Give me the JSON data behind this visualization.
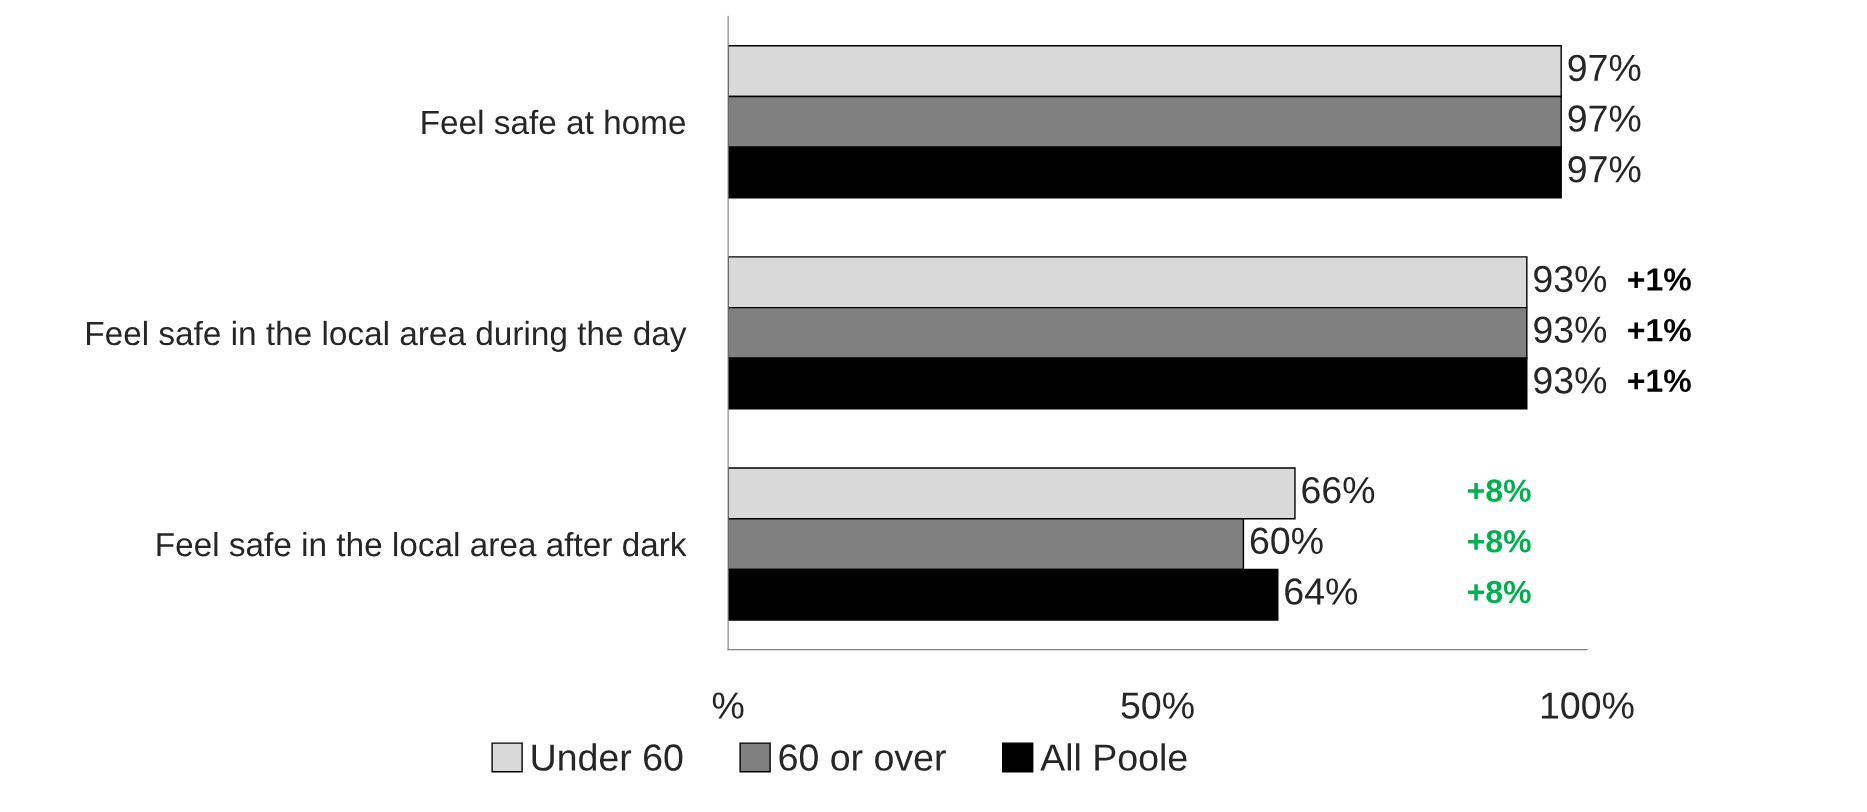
{
  "chart_data": {
    "type": "bar",
    "orientation": "horizontal",
    "categories": [
      "Feel safe at home",
      "Feel safe in the local area during the day",
      "Feel safe in the local area after dark"
    ],
    "series": [
      {
        "name": "Under 60",
        "color": "#d9d9d9",
        "values": [
          97,
          93,
          66
        ],
        "value_labels": [
          "97%",
          "93%",
          "66%"
        ]
      },
      {
        "name": "60 or over",
        "color": "#808080",
        "values": [
          97,
          93,
          60
        ],
        "value_labels": [
          "97%",
          "93%",
          "60%"
        ]
      },
      {
        "name": "All Poole",
        "color": "#000000",
        "values": [
          97,
          93,
          64
        ],
        "value_labels": [
          "97%",
          "93%",
          "64%"
        ]
      }
    ],
    "xlim": [
      0,
      100
    ],
    "xticks": [
      {
        "value": 0,
        "label": "%"
      },
      {
        "value": 50,
        "label": "50%"
      },
      {
        "value": 100,
        "label": "100%"
      }
    ],
    "annotations": [
      "+1%",
      "+1%",
      "+1%",
      "+8%",
      "+8%",
      "+8%"
    ],
    "legend": "bottom",
    "grid": false
  }
}
